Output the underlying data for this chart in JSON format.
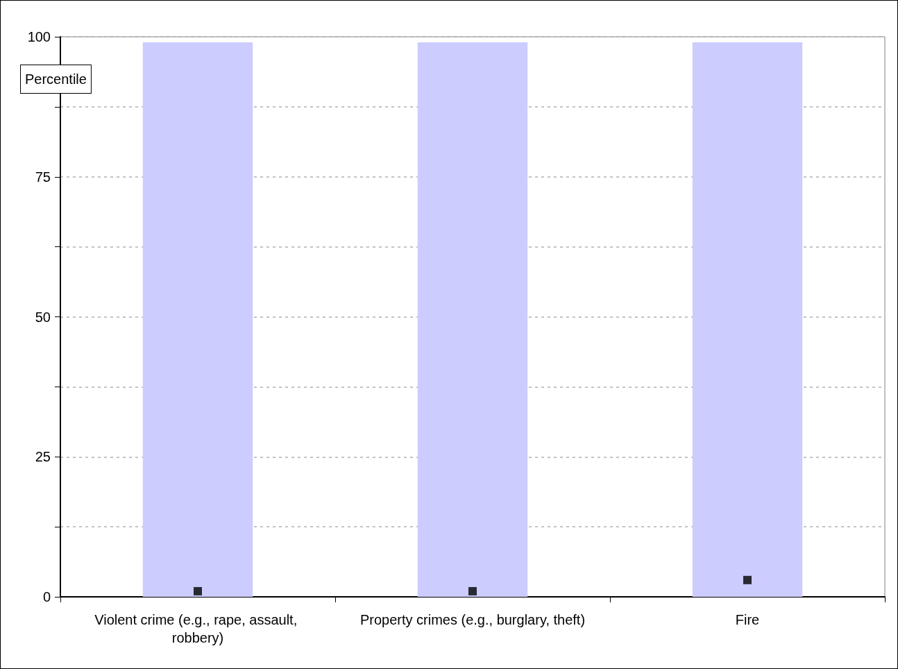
{
  "chart_data": {
    "type": "bar",
    "ylabel": "Percentile",
    "categories": [
      "Violent crime (e.g., rape, assault, robbery)",
      "Property crimes (e.g., burglary, theft)",
      "Fire"
    ],
    "series": [
      {
        "color": "#ccccff",
        "values": [
          99,
          99,
          99
        ]
      },
      {
        "type": "scatter",
        "marker": "square",
        "color": "#000000",
        "x": [
          "Violent crime (e.g., rape, assault, robbery)",
          "Property crimes (e.g., burglary, theft)",
          "Fire"
        ],
        "values": [
          1,
          1,
          3
        ]
      }
    ],
    "ylim": [
      0,
      100
    ],
    "yticks": [
      0,
      {
        "value": 12.5,
        "label": null
      },
      25,
      {
        "value": 37.5,
        "label": null
      },
      50,
      {
        "value": 62.5,
        "label": null
      },
      75,
      {
        "value": 87.5,
        "label": null
      },
      100
    ],
    "grid": "y"
  }
}
